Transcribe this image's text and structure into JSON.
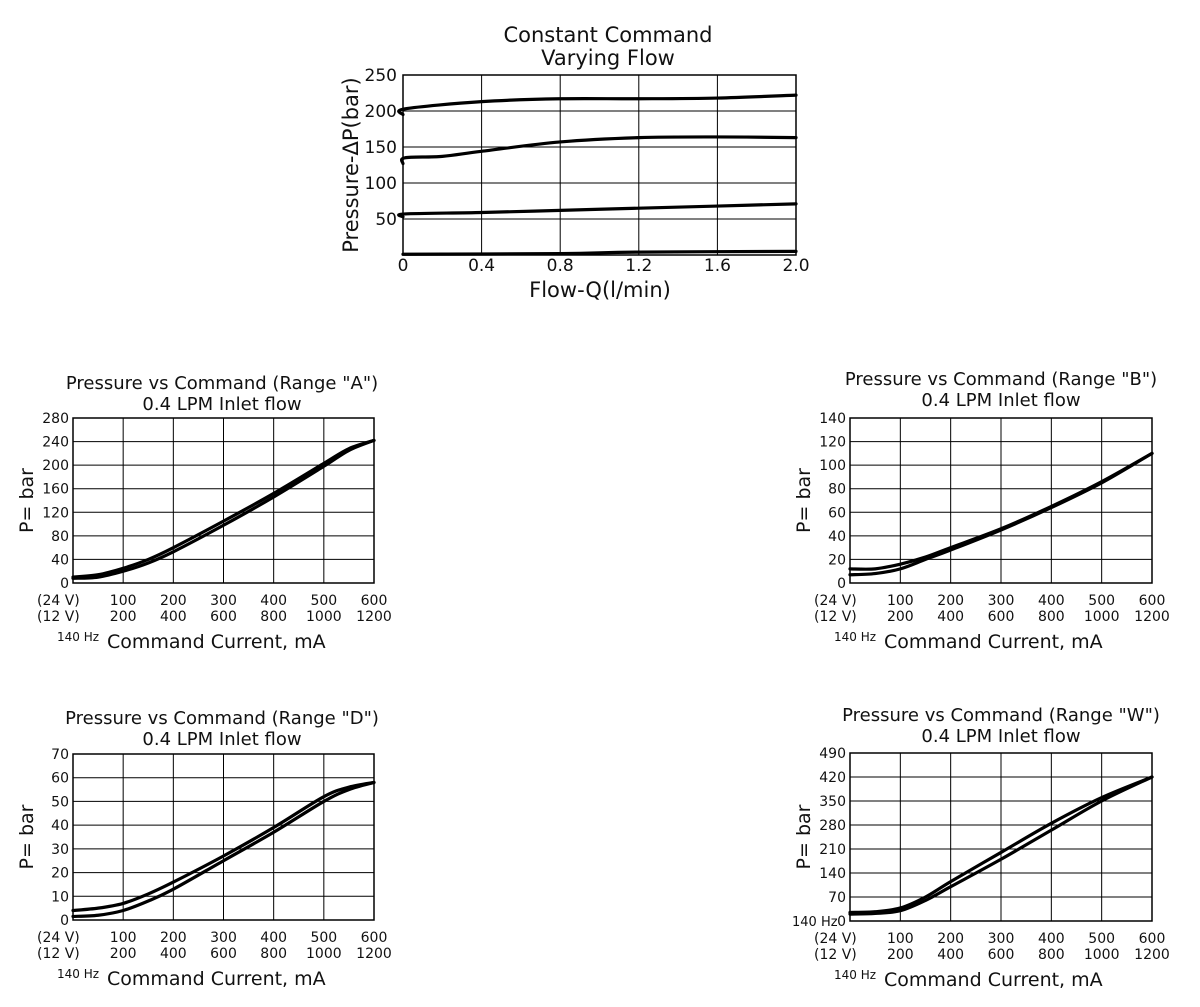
{
  "chart_data": [
    {
      "type": "line",
      "title": [
        "Constant Command",
        "Varying Flow"
      ],
      "xlabel": "Flow-Q(l/min)",
      "ylabel": "Pressure-ΔP(bar)",
      "xlim": [
        0,
        2.0
      ],
      "ylim": [
        0,
        250
      ],
      "xticks": [
        "0",
        "0.4",
        "0.8",
        "1.2",
        "1.6",
        "2.0"
      ],
      "yticks": [
        "50",
        "100",
        "150",
        "200",
        "250"
      ],
      "grid": true,
      "series": [
        {
          "x": [
            0,
            0.01,
            0.4,
            0.8,
            1.2,
            1.6,
            2.0
          ],
          "y": [
            195,
            203,
            213,
            217,
            217,
            218,
            222
          ]
        },
        {
          "x": [
            0,
            0.01,
            0.2,
            0.4,
            0.8,
            1.2,
            1.6,
            2.0
          ],
          "y": [
            127,
            135,
            137,
            144,
            157,
            163,
            164,
            163
          ]
        },
        {
          "x": [
            0,
            0.01,
            0.4,
            0.8,
            1.2,
            1.6,
            2.0
          ],
          "y": [
            53,
            57,
            59,
            62,
            65,
            68,
            71
          ]
        },
        {
          "x": [
            0,
            0.8,
            1.2,
            2.0
          ],
          "y": [
            1,
            2,
            4,
            5
          ]
        }
      ]
    },
    {
      "type": "line",
      "title": [
        "Pressure vs Command (Range \"A\")",
        "0.4 LPM Inlet flow"
      ],
      "xlabel": "Command Current, mA",
      "xlabel_prefix": "140 Hz",
      "ylabel": "P= bar",
      "xlim": [
        0,
        600
      ],
      "ylim": [
        0,
        280
      ],
      "yticks": [
        "0",
        "40",
        "80",
        "120",
        "160",
        "200",
        "240",
        "280"
      ],
      "xtick_rows": [
        {
          "label": "(24 V)",
          "ticks": [
            "100",
            "200",
            "300",
            "400",
            "500",
            "600"
          ]
        },
        {
          "label": "(12 V)",
          "ticks": [
            "200",
            "400",
            "600",
            "800",
            "1000",
            "1200"
          ]
        }
      ],
      "grid": true,
      "series": [
        {
          "x": [
            0,
            50,
            100,
            150,
            200,
            300,
            400,
            500,
            550,
            600
          ],
          "y": [
            10,
            14,
            25,
            40,
            60,
            105,
            152,
            203,
            228,
            242
          ]
        },
        {
          "x": [
            0,
            50,
            100,
            150,
            200,
            300,
            400,
            500,
            550,
            600
          ],
          "y": [
            8,
            10,
            20,
            34,
            53,
            98,
            146,
            198,
            225,
            242
          ]
        }
      ]
    },
    {
      "type": "line",
      "title": [
        "Pressure vs Command (Range \"B\")",
        "0.4 LPM Inlet flow"
      ],
      "xlabel": "Command Current, mA",
      "xlabel_prefix": "140 Hz",
      "ylabel": "P= bar",
      "xlim": [
        0,
        600
      ],
      "ylim": [
        0,
        140
      ],
      "yticks": [
        "0",
        "20",
        "40",
        "60",
        "80",
        "100",
        "120",
        "140"
      ],
      "xtick_rows": [
        {
          "label": "(24 V)",
          "ticks": [
            "100",
            "200",
            "300",
            "400",
            "500",
            "600"
          ]
        },
        {
          "label": "(12 V)",
          "ticks": [
            "200",
            "400",
            "600",
            "800",
            "1000",
            "1200"
          ]
        }
      ],
      "grid": true,
      "series": [
        {
          "x": [
            0,
            50,
            100,
            150,
            200,
            300,
            400,
            500,
            600
          ],
          "y": [
            12,
            12,
            16,
            22,
            30,
            46,
            65,
            86,
            110
          ]
        },
        {
          "x": [
            0,
            50,
            100,
            150,
            200,
            300,
            400,
            500,
            600
          ],
          "y": [
            7,
            8,
            12,
            20,
            28,
            45,
            64,
            85,
            110
          ]
        }
      ]
    },
    {
      "type": "line",
      "title": [
        "Pressure vs Command (Range \"D\")",
        "0.4 LPM Inlet flow"
      ],
      "xlabel": "Command Current, mA",
      "xlabel_prefix": "140 Hz",
      "ylabel": "P= bar",
      "xlim": [
        0,
        600
      ],
      "ylim": [
        0,
        70
      ],
      "yticks": [
        "0",
        "10",
        "20",
        "30",
        "40",
        "50",
        "60",
        "70"
      ],
      "xtick_rows": [
        {
          "label": "(24 V)",
          "ticks": [
            "100",
            "200",
            "300",
            "400",
            "500",
            "600"
          ]
        },
        {
          "label": "(12 V)",
          "ticks": [
            "200",
            "400",
            "600",
            "800",
            "1000",
            "1200"
          ]
        }
      ],
      "grid": true,
      "series": [
        {
          "x": [
            0,
            50,
            100,
            150,
            200,
            300,
            400,
            500,
            550,
            600
          ],
          "y": [
            4,
            5,
            7,
            11,
            16,
            27,
            39,
            52,
            56,
            58
          ]
        },
        {
          "x": [
            0,
            50,
            100,
            150,
            200,
            300,
            400,
            500,
            550,
            600
          ],
          "y": [
            1.5,
            2,
            4,
            8,
            13,
            25,
            37,
            50,
            55,
            58
          ]
        }
      ]
    },
    {
      "type": "line",
      "title": [
        "Pressure vs Command (Range \"W\")",
        "0.4 LPM Inlet flow"
      ],
      "xlabel": "Command Current, mA",
      "xlabel_prefix": "140 Hz",
      "ylabel": "P= bar",
      "ytick_prefix": "140 Hz",
      "xlim": [
        0,
        600
      ],
      "ylim": [
        0,
        490
      ],
      "yticks": [
        "0",
        "70",
        "140",
        "210",
        "280",
        "350",
        "420",
        "490"
      ],
      "xtick_rows": [
        {
          "label": "(24 V)",
          "ticks": [
            "100",
            "200",
            "300",
            "400",
            "500",
            "600"
          ]
        },
        {
          "label": "(12 V)",
          "ticks": [
            "200",
            "400",
            "600",
            "800",
            "1000",
            "1200"
          ]
        }
      ],
      "grid": true,
      "series": [
        {
          "x": [
            0,
            50,
            100,
            150,
            200,
            300,
            400,
            500,
            600
          ],
          "y": [
            25,
            27,
            38,
            70,
            115,
            200,
            285,
            360,
            420
          ]
        },
        {
          "x": [
            0,
            50,
            100,
            150,
            200,
            300,
            400,
            500,
            600
          ],
          "y": [
            20,
            22,
            30,
            60,
            100,
            180,
            265,
            350,
            420
          ]
        }
      ]
    }
  ]
}
